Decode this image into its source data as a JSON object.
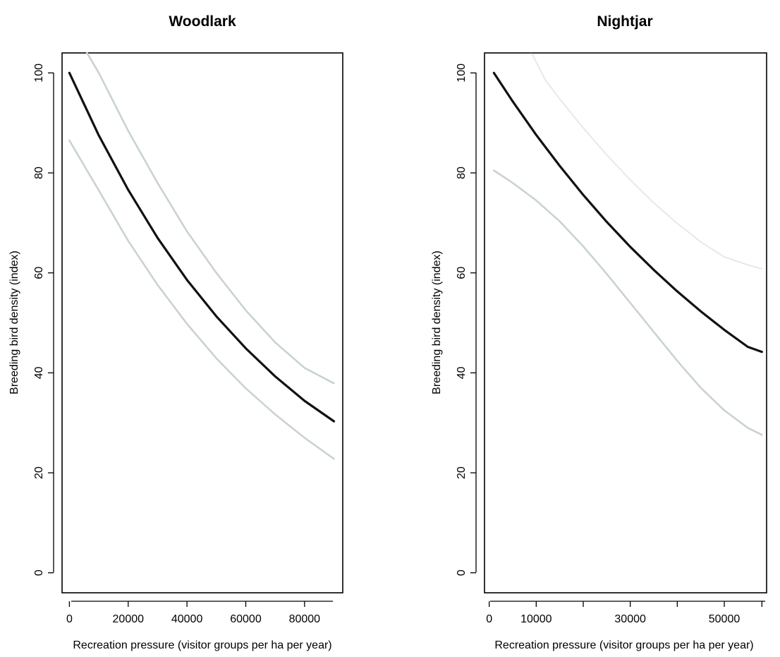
{
  "chart_data": [
    {
      "type": "line",
      "title": "Woodlark",
      "xlabel": "Recreation pressure (visitor groups per ha per year)",
      "ylabel": "Breeding bird density (index)",
      "xlim": [
        -2500,
        93000
      ],
      "ylim": [
        -4,
        104
      ],
      "xticks": [
        0,
        20000,
        40000,
        60000,
        80000
      ],
      "xtick_labels": [
        "0",
        "20000",
        "40000",
        "60000",
        "80000"
      ],
      "yticks": [
        0,
        20,
        40,
        60,
        80,
        100
      ],
      "ytick_labels": [
        "0",
        "20",
        "40",
        "60",
        "80",
        "100"
      ],
      "grid": false,
      "series": [
        {
          "role": "fit",
          "color": "#111111",
          "width": 3.2,
          "x": [
            0,
            10000,
            20000,
            30000,
            40000,
            50000,
            60000,
            70000,
            80000,
            90000
          ],
          "y": [
            100,
            87.5,
            76.6,
            67.0,
            58.6,
            51.3,
            44.9,
            39.3,
            34.4,
            30.3
          ]
        },
        {
          "role": "upper",
          "color": "#c9d3d0",
          "width": 2.6,
          "x": [
            6000,
            10000,
            20000,
            30000,
            40000,
            50000,
            60000,
            70000,
            80000,
            90000
          ],
          "y": [
            104,
            100,
            88.4,
            78.0,
            68.3,
            60.0,
            52.5,
            46.1,
            41.0,
            37.9
          ]
        },
        {
          "role": "lower",
          "color": "#c9d3d0",
          "width": 2.6,
          "x": [
            0,
            10000,
            20000,
            30000,
            40000,
            50000,
            60000,
            70000,
            80000,
            90000
          ],
          "y": [
            86.5,
            76.5,
            66.4,
            57.6,
            49.8,
            42.9,
            36.9,
            31.7,
            27.0,
            22.8
          ]
        }
      ]
    },
    {
      "type": "line",
      "title": "Nightjar",
      "xlabel": "Recreation pressure (visitor groups per ha per year)",
      "ylabel": "Breeding bird density (index)",
      "xlim": [
        -1000,
        59000
      ],
      "ylim": [
        -4,
        104
      ],
      "xticks": [
        0,
        10000,
        20000,
        30000,
        40000,
        50000,
        58000
      ],
      "xtick_labels": [
        "0",
        "10000",
        "",
        "30000",
        "",
        "50000",
        ""
      ],
      "yticks": [
        0,
        20,
        40,
        60,
        80,
        100
      ],
      "ytick_labels": [
        "0",
        "20",
        "40",
        "60",
        "80",
        "100"
      ],
      "grid": false,
      "series": [
        {
          "role": "fit",
          "color": "#111111",
          "width": 3.2,
          "x": [
            1000,
            5000,
            10000,
            15000,
            20000,
            25000,
            30000,
            35000,
            40000,
            45000,
            50000,
            55000,
            58000
          ],
          "y": [
            100,
            94.3,
            87.6,
            81.4,
            75.6,
            70.2,
            65.2,
            60.6,
            56.3,
            52.3,
            48.6,
            45.2,
            44.2
          ]
        },
        {
          "role": "upper",
          "color": "#e6e9e8",
          "width": 2.0,
          "x": [
            9000,
            12000,
            15000,
            20000,
            25000,
            30000,
            35000,
            40000,
            45000,
            50000,
            55000,
            58000
          ],
          "y": [
            104,
            98.5,
            94.8,
            89.0,
            83.6,
            78.6,
            74.0,
            69.9,
            66.2,
            63.2,
            61.6,
            60.8
          ]
        },
        {
          "role": "upper-clipped",
          "color": "#333333",
          "width": 2.0,
          "x": [
            9000,
            58000
          ],
          "y": [
            104,
            104
          ]
        },
        {
          "role": "lower",
          "color": "#c9d3d0",
          "width": 2.6,
          "x": [
            1000,
            5000,
            10000,
            15000,
            20000,
            25000,
            30000,
            35000,
            40000,
            45000,
            50000,
            55000,
            58000
          ],
          "y": [
            80.5,
            78.0,
            74.5,
            70.3,
            65.3,
            59.8,
            54.0,
            48.2,
            42.4,
            37.0,
            32.5,
            29.0,
            27.6
          ]
        }
      ]
    }
  ]
}
